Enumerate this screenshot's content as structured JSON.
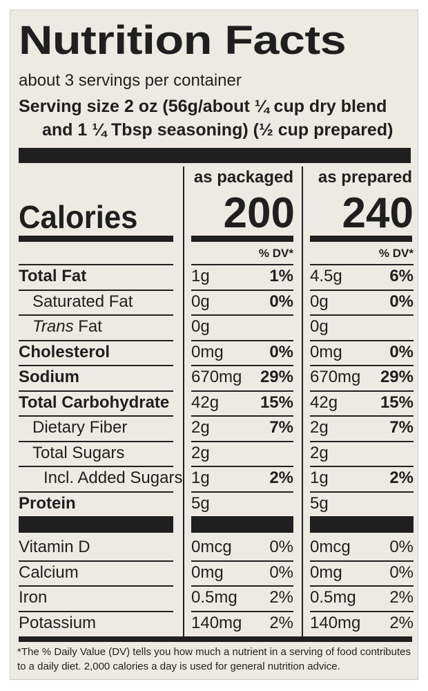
{
  "title": "Nutrition Facts",
  "servings_per_container": "about 3 servings per container",
  "serving_size_line1": "Serving size  2 oz (56g/about ¼ cup dry blend",
  "serving_size_line2": "and 1 ¼ Tbsp seasoning) (½ cup prepared)",
  "columns": {
    "packaged_label": "as packaged",
    "prepared_label": "as prepared",
    "dv_label": "% DV*"
  },
  "calories": {
    "label": "Calories",
    "packaged": "200",
    "prepared": "240"
  },
  "nutrients": [
    {
      "label": "Total Fat",
      "packaged_amount": "1g",
      "packaged_dv": "1%",
      "prepared_amount": "4.5g",
      "prepared_dv": "6%"
    },
    {
      "label": "Saturated Fat",
      "packaged_amount": "0g",
      "packaged_dv": "0%",
      "prepared_amount": "0g",
      "prepared_dv": "0%"
    },
    {
      "label_italic": "Trans",
      "label": " Fat",
      "packaged_amount": "0g",
      "packaged_dv": "",
      "prepared_amount": "0g",
      "prepared_dv": ""
    },
    {
      "label": "Cholesterol",
      "packaged_amount": "0mg",
      "packaged_dv": "0%",
      "prepared_amount": "0mg",
      "prepared_dv": "0%"
    },
    {
      "label": "Sodium",
      "packaged_amount": "670mg",
      "packaged_dv": "29%",
      "prepared_amount": "670mg",
      "prepared_dv": "29%"
    },
    {
      "label": "Total Carbohydrate",
      "packaged_amount": "42g",
      "packaged_dv": "15%",
      "prepared_amount": "42g",
      "prepared_dv": "15%"
    },
    {
      "label": "Dietary Fiber",
      "packaged_amount": "2g",
      "packaged_dv": "7%",
      "prepared_amount": "2g",
      "prepared_dv": "7%"
    },
    {
      "label": "Total Sugars",
      "packaged_amount": "2g",
      "packaged_dv": "",
      "prepared_amount": "2g",
      "prepared_dv": ""
    },
    {
      "label": "Incl. Added Sugars",
      "packaged_amount": "1g",
      "packaged_dv": "2%",
      "prepared_amount": "1g",
      "prepared_dv": "2%"
    },
    {
      "label": "Protein",
      "packaged_amount": "5g",
      "packaged_dv": "",
      "prepared_amount": "5g",
      "prepared_dv": ""
    }
  ],
  "vitamins": [
    {
      "label": "Vitamin D",
      "packaged_amount": "0mcg",
      "packaged_dv": "0%",
      "prepared_amount": "0mcg",
      "prepared_dv": "0%"
    },
    {
      "label": "Calcium",
      "packaged_amount": "0mg",
      "packaged_dv": "0%",
      "prepared_amount": "0mg",
      "prepared_dv": "0%"
    },
    {
      "label": "Iron",
      "packaged_amount": "0.5mg",
      "packaged_dv": "2%",
      "prepared_amount": "0.5mg",
      "prepared_dv": "2%"
    },
    {
      "label": "Potassium",
      "packaged_amount": "140mg",
      "packaged_dv": "2%",
      "prepared_amount": "140mg",
      "prepared_dv": "2%"
    }
  ],
  "footnote": "*The % Daily Value (DV) tells you how much a nutrient in a serving of food contributes to a daily diet. 2,000 calories a day is used for general nutrition advice.",
  "colors": {
    "ink": "#1f1f1f",
    "panel": "#edeae4"
  }
}
